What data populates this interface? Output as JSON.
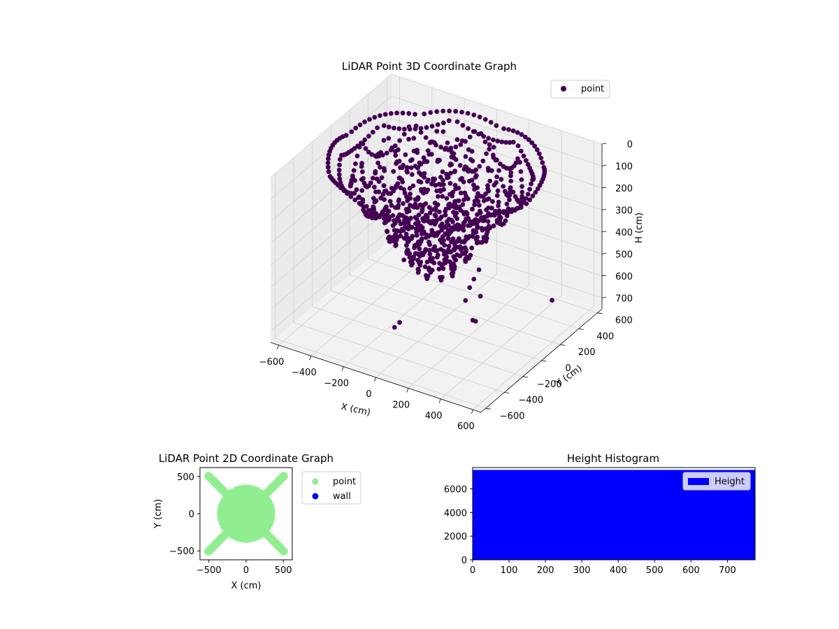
{
  "chart_data": [
    {
      "id": "lidar3d",
      "type": "scatter",
      "projection": "3d",
      "title": "LiDAR Point 3D Coordinate Graph",
      "xlabel": "X (cm)",
      "ylabel": "Y (cm)",
      "zlabel": "H (cm)",
      "xticks": [
        -600,
        -400,
        -200,
        0,
        200,
        400,
        600
      ],
      "yticks": [
        -600,
        -400,
        -200,
        0,
        200,
        400,
        600
      ],
      "zticks": [
        0,
        100,
        200,
        300,
        400,
        500,
        600,
        700
      ],
      "xlim": [
        -650,
        650
      ],
      "ylim": [
        -650,
        650
      ],
      "zlim": [
        0,
        750
      ],
      "z_inverted": true,
      "grid": true,
      "legend": {
        "placement": "top-right",
        "entries": [
          {
            "label": "point",
            "color": "#440154"
          }
        ]
      },
      "series": [
        {
          "name": "point",
          "color": "#440154",
          "structure": "concentric ring arcs of returns with depth increasing toward the center, plus sparse outlier points",
          "ring_radii": [
            100,
            160,
            220,
            280,
            340,
            400,
            460,
            520,
            580
          ],
          "ring_depth_range": [
            20,
            600
          ],
          "outliers": [
            {
              "x": 620,
              "y": -620,
              "z": 120
            },
            {
              "x": 600,
              "y": -640,
              "z": 160
            },
            {
              "x": 580,
              "y": -650,
              "z": 200
            },
            {
              "x": 560,
              "y": -660,
              "z": 260
            },
            {
              "x": 300,
              "y": -100,
              "z": 620
            },
            {
              "x": 260,
              "y": -60,
              "z": 640
            },
            {
              "x": -100,
              "y": -220,
              "z": 680
            },
            {
              "x": -120,
              "y": -240,
              "z": 700
            },
            {
              "x": 100,
              "y": 300,
              "z": 700
            },
            {
              "x": -200,
              "y": 0,
              "z": 500
            },
            {
              "x": 600,
              "y": 200,
              "z": 560
            }
          ]
        }
      ]
    },
    {
      "id": "lidar2d",
      "type": "scatter",
      "title": "LiDAR Point 2D Coordinate Graph",
      "xlabel": "X (cm)",
      "ylabel": "Y (cm)",
      "xticks": [
        -500,
        0,
        500
      ],
      "yticks": [
        -500,
        0,
        500
      ],
      "xlim": [
        -620,
        620
      ],
      "ylim": [
        -620,
        620
      ],
      "legend": {
        "placement": "right",
        "entries": [
          {
            "label": "point",
            "color": "#90ee90"
          },
          {
            "label": "wall",
            "color": "#0000ff"
          }
        ]
      },
      "series": [
        {
          "name": "point",
          "color": "#90ee90",
          "structure": "dense central blob of radius ~350 with diagonal arms toward the corners"
        },
        {
          "name": "wall",
          "color": "#0000ff",
          "points": []
        }
      ]
    },
    {
      "id": "histogram",
      "type": "bar",
      "title": "Height Histogram",
      "xticks": [
        0,
        100,
        200,
        300,
        400,
        500,
        600,
        700
      ],
      "yticks": [
        0,
        2000,
        4000,
        6000
      ],
      "xlim": [
        0,
        776
      ],
      "ylim": [
        0,
        7800
      ],
      "color": "#0000ff",
      "bins": [
        {
          "x0": 0,
          "x1": 776,
          "count": 7600
        }
      ],
      "legend": {
        "placement": "top-right",
        "entries": [
          {
            "label": "Height",
            "color": "#0000ff"
          }
        ]
      }
    }
  ]
}
